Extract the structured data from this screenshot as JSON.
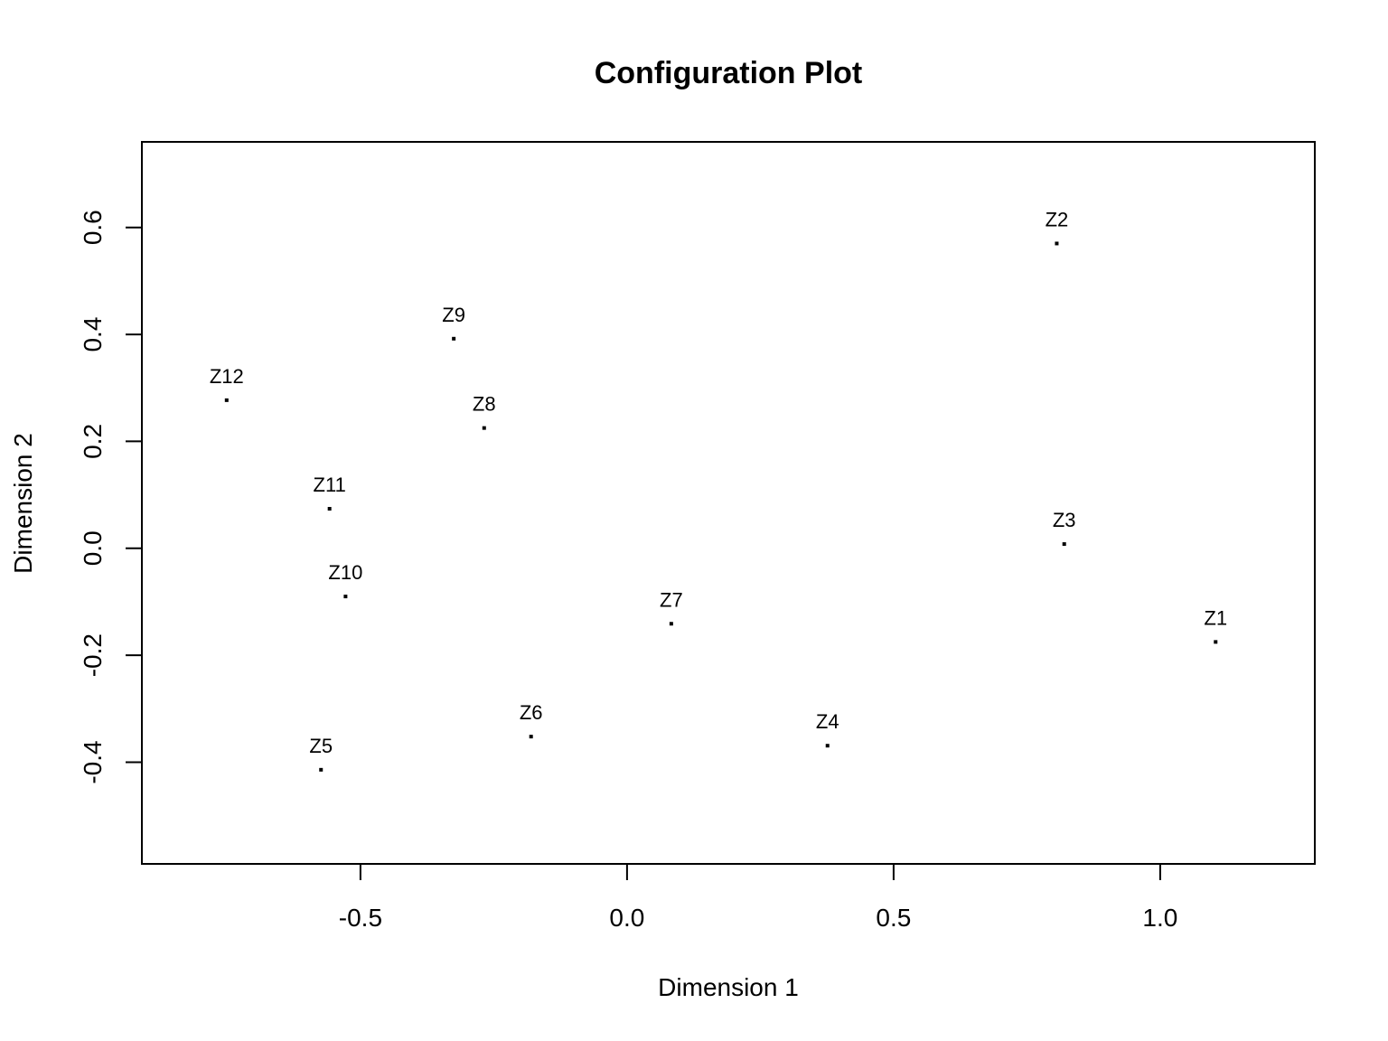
{
  "chart_data": {
    "type": "scatter",
    "title": "Configuration Plot",
    "xlabel": "Dimension 1",
    "ylabel": "Dimension 2",
    "xlim": [
      -0.91,
      1.29
    ],
    "ylim": [
      -0.59,
      0.76
    ],
    "xticks": [
      -0.5,
      0.0,
      0.5,
      1.0
    ],
    "xtick_labels": [
      "-0.5",
      "0.0",
      "0.5",
      "1.0"
    ],
    "yticks": [
      -0.4,
      -0.2,
      0.0,
      0.2,
      0.4,
      0.6
    ],
    "ytick_labels": [
      "-0.4",
      "-0.2",
      "0.0",
      "0.2",
      "0.4",
      "0.6"
    ],
    "grid": false,
    "points": [
      {
        "label": "Z1",
        "x": 1.104,
        "y": -0.175
      },
      {
        "label": "Z2",
        "x": 0.806,
        "y": 0.57
      },
      {
        "label": "Z3",
        "x": 0.82,
        "y": 0.008
      },
      {
        "label": "Z4",
        "x": 0.376,
        "y": -0.369
      },
      {
        "label": "Z5",
        "x": -0.574,
        "y": -0.414
      },
      {
        "label": "Z6",
        "x": -0.18,
        "y": -0.352
      },
      {
        "label": "Z7",
        "x": 0.083,
        "y": -0.141
      },
      {
        "label": "Z8",
        "x": -0.268,
        "y": 0.225
      },
      {
        "label": "Z9",
        "x": -0.325,
        "y": 0.392
      },
      {
        "label": "Z10",
        "x": -0.528,
        "y": -0.09
      },
      {
        "label": "Z11",
        "x": -0.558,
        "y": 0.074
      },
      {
        "label": "Z12",
        "x": -0.751,
        "y": 0.277
      }
    ]
  }
}
